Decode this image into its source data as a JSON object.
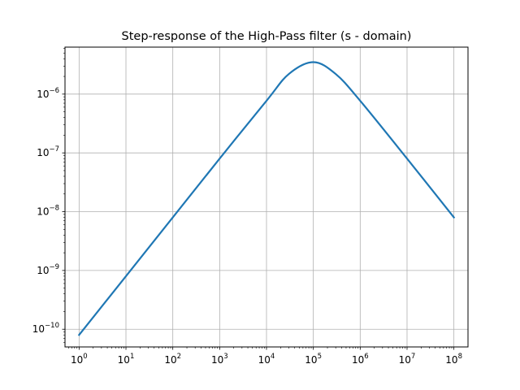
{
  "chart_data": {
    "type": "line",
    "title": "Step-response of the High-Pass filter (s - domain)",
    "xlabel": "",
    "ylabel": "",
    "xscale": "log",
    "yscale": "log",
    "xlim": [
      0.5,
      200000000
    ],
    "ylim": [
      5e-11,
      6.3e-06
    ],
    "grid": true,
    "line_color": "#1f77b4",
    "x_ticks": [
      {
        "base": "10",
        "exp": "0",
        "value": 1
      },
      {
        "base": "10",
        "exp": "1",
        "value": 10
      },
      {
        "base": "10",
        "exp": "2",
        "value": 100
      },
      {
        "base": "10",
        "exp": "3",
        "value": 1000
      },
      {
        "base": "10",
        "exp": "4",
        "value": 10000
      },
      {
        "base": "10",
        "exp": "5",
        "value": 100000
      },
      {
        "base": "10",
        "exp": "6",
        "value": 1000000
      },
      {
        "base": "10",
        "exp": "7",
        "value": 10000000
      },
      {
        "base": "10",
        "exp": "8",
        "value": 100000000
      }
    ],
    "y_ticks": [
      {
        "base": "10",
        "exp": "−10",
        "value": 1e-10
      },
      {
        "base": "10",
        "exp": "−9",
        "value": 1e-09
      },
      {
        "base": "10",
        "exp": "−8",
        "value": 1e-08
      },
      {
        "base": "10",
        "exp": "−7",
        "value": 1e-07
      },
      {
        "base": "10",
        "exp": "−6",
        "value": 1e-06
      }
    ],
    "series": [
      {
        "x": [
          1,
          10,
          100,
          1000,
          10000,
          30000,
          100000,
          300000,
          1000000,
          10000000,
          100000000
        ],
        "y": [
          8e-11,
          8e-10,
          8e-09,
          8e-08,
          7.7e-07,
          2.2e-06,
          3.5e-06,
          2.2e-06,
          7.7e-07,
          8e-08,
          8e-09
        ]
      }
    ]
  }
}
